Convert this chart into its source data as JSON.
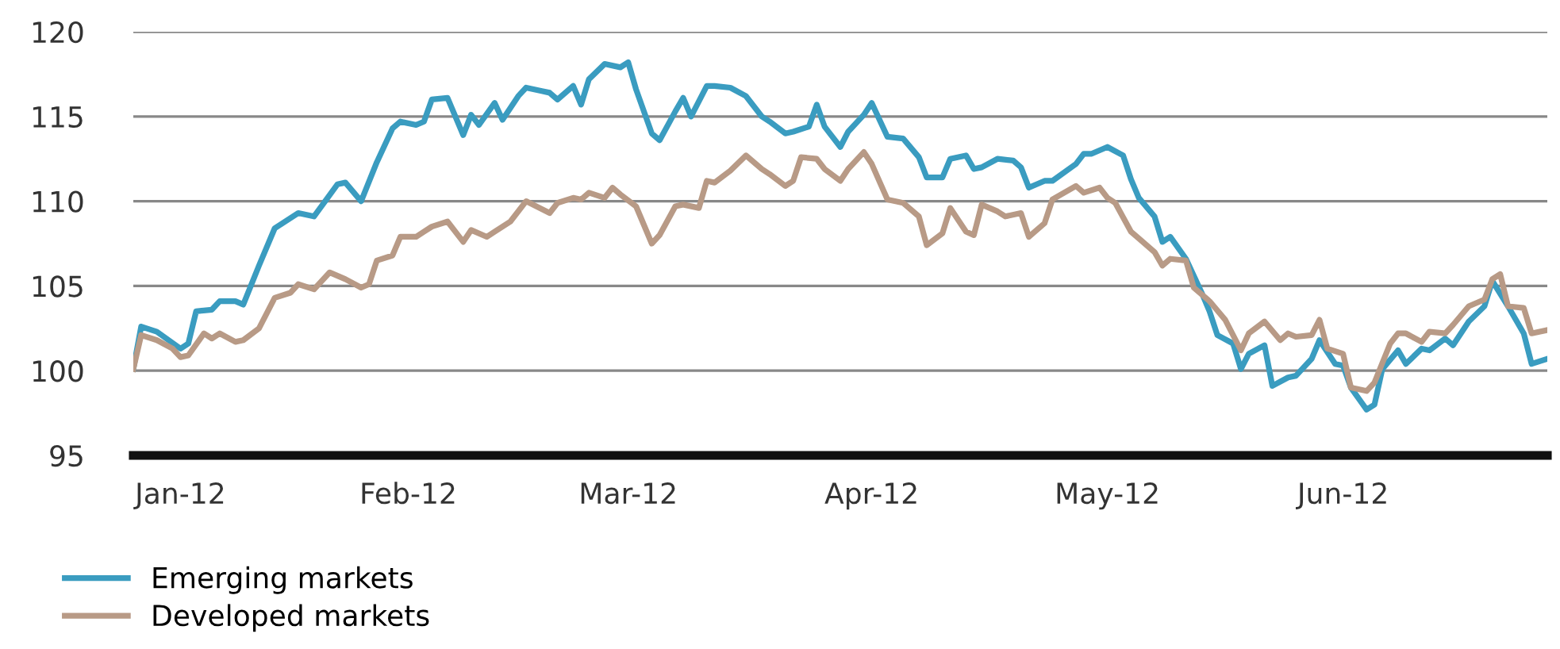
{
  "chart_data": {
    "type": "line",
    "xlim": [
      "2012-01-02",
      "2012-06-30"
    ],
    "xticks": [
      {
        "value": "2012-01-08",
        "label": "Jan-12"
      },
      {
        "value": "2012-02-06",
        "label": "Feb-12"
      },
      {
        "value": "2012-03-05",
        "label": "Mar-12"
      },
      {
        "value": "2012-04-05",
        "label": "Apr-12"
      },
      {
        "value": "2012-05-05",
        "label": "May-12"
      },
      {
        "value": "2012-06-04",
        "label": "Jun-12"
      }
    ],
    "ylim": [
      95,
      120
    ],
    "yticks": [
      95,
      100,
      105,
      110,
      115,
      120
    ],
    "grid": "y",
    "legend": "bottom left",
    "line_style": "solid",
    "marker": "none",
    "series": [
      {
        "name": "Emerging markets",
        "color": "#3a9cc0",
        "x": [
          "2012-01-02",
          "2012-01-03",
          "2012-01-05",
          "2012-01-08",
          "2012-01-09",
          "2012-01-10",
          "2012-01-12",
          "2012-01-13",
          "2012-01-15",
          "2012-01-16",
          "2012-01-18",
          "2012-01-20",
          "2012-01-23",
          "2012-01-25",
          "2012-01-28",
          "2012-01-29",
          "2012-01-31",
          "2012-02-02",
          "2012-02-04",
          "2012-02-05",
          "2012-02-07",
          "2012-02-08",
          "2012-02-09",
          "2012-02-11",
          "2012-02-13",
          "2012-02-14",
          "2012-02-15",
          "2012-02-17",
          "2012-02-18",
          "2012-02-20",
          "2012-02-21",
          "2012-02-23",
          "2012-02-24",
          "2012-02-25",
          "2012-02-27",
          "2012-02-28",
          "2012-02-29",
          "2012-03-02",
          "2012-03-04",
          "2012-03-05",
          "2012-03-06",
          "2012-03-08",
          "2012-03-09",
          "2012-03-11",
          "2012-03-12",
          "2012-03-13",
          "2012-03-15",
          "2012-03-16",
          "2012-03-18",
          "2012-03-20",
          "2012-03-22",
          "2012-03-23",
          "2012-03-25",
          "2012-03-26",
          "2012-03-28",
          "2012-03-29",
          "2012-03-30",
          "2012-04-01",
          "2012-04-02",
          "2012-04-04",
          "2012-04-05",
          "2012-04-07",
          "2012-04-09",
          "2012-04-11",
          "2012-04-12",
          "2012-04-14",
          "2012-04-15",
          "2012-04-17",
          "2012-04-18",
          "2012-04-19",
          "2012-04-21",
          "2012-04-23",
          "2012-04-24",
          "2012-04-25",
          "2012-04-27",
          "2012-04-28",
          "2012-05-01",
          "2012-05-02",
          "2012-05-03",
          "2012-05-05",
          "2012-05-07",
          "2012-05-08",
          "2012-05-09",
          "2012-05-11",
          "2012-05-12",
          "2012-05-13",
          "2012-05-15",
          "2012-05-17",
          "2012-05-18",
          "2012-05-19",
          "2012-05-21",
          "2012-05-22",
          "2012-05-23",
          "2012-05-25",
          "2012-05-26",
          "2012-05-28",
          "2012-05-29",
          "2012-05-31",
          "2012-06-01",
          "2012-06-03",
          "2012-06-04",
          "2012-06-05",
          "2012-06-07",
          "2012-06-08",
          "2012-06-09",
          "2012-06-11",
          "2012-06-12",
          "2012-06-14",
          "2012-06-15",
          "2012-06-17",
          "2012-06-18",
          "2012-06-20",
          "2012-06-22",
          "2012-06-23",
          "2012-06-25",
          "2012-06-27",
          "2012-06-28",
          "2012-06-30"
        ],
        "values": [
          100.1,
          102.6,
          102.3,
          101.3,
          101.6,
          103.5,
          103.6,
          104.1,
          104.1,
          103.9,
          106.2,
          108.4,
          109.3,
          109.1,
          111.0,
          111.1,
          110.0,
          112.3,
          114.3,
          114.7,
          114.5,
          114.7,
          116.0,
          116.1,
          113.9,
          115.1,
          114.5,
          115.8,
          114.8,
          116.2,
          116.7,
          116.5,
          116.4,
          116.0,
          116.8,
          115.7,
          117.2,
          118.1,
          117.9,
          118.2,
          116.6,
          114.0,
          113.6,
          115.3,
          116.1,
          115.0,
          116.8,
          116.8,
          116.7,
          116.2,
          115.0,
          114.7,
          114.0,
          114.1,
          114.4,
          115.7,
          114.4,
          113.2,
          114.1,
          115.1,
          115.8,
          113.8,
          113.7,
          112.6,
          111.4,
          111.4,
          112.5,
          112.7,
          111.9,
          112.0,
          112.5,
          112.4,
          112.0,
          110.8,
          111.2,
          111.2,
          112.2,
          112.8,
          112.8,
          113.2,
          112.7,
          111.3,
          110.2,
          109.1,
          107.6,
          107.9,
          106.6,
          104.6,
          103.5,
          102.1,
          101.6,
          100.1,
          101.0,
          101.5,
          99.1,
          99.6,
          99.7,
          100.7,
          101.8,
          100.4,
          100.3,
          99.0,
          97.7,
          98.0,
          100.1,
          101.2,
          100.4,
          101.3,
          101.2,
          101.9,
          101.5,
          102.9,
          103.8,
          105.3,
          103.8,
          102.2,
          100.4,
          100.7
        ]
      },
      {
        "name": "Developed markets",
        "color": "#b89a86",
        "x": [
          "2012-01-02",
          "2012-01-03",
          "2012-01-05",
          "2012-01-07",
          "2012-01-08",
          "2012-01-09",
          "2012-01-11",
          "2012-01-12",
          "2012-01-13",
          "2012-01-15",
          "2012-01-16",
          "2012-01-18",
          "2012-01-20",
          "2012-01-22",
          "2012-01-23",
          "2012-01-25",
          "2012-01-27",
          "2012-01-29",
          "2012-01-31",
          "2012-02-01",
          "2012-02-02",
          "2012-02-04",
          "2012-02-05",
          "2012-02-07",
          "2012-02-08",
          "2012-02-09",
          "2012-02-11",
          "2012-02-13",
          "2012-02-14",
          "2012-02-16",
          "2012-02-17",
          "2012-02-19",
          "2012-02-21",
          "2012-02-24",
          "2012-02-25",
          "2012-02-27",
          "2012-02-28",
          "2012-02-29",
          "2012-03-02",
          "2012-03-03",
          "2012-03-04",
          "2012-03-06",
          "2012-03-08",
          "2012-03-09",
          "2012-03-11",
          "2012-03-12",
          "2012-03-14",
          "2012-03-15",
          "2012-03-16",
          "2012-03-18",
          "2012-03-20",
          "2012-03-22",
          "2012-03-23",
          "2012-03-25",
          "2012-03-26",
          "2012-03-27",
          "2012-03-29",
          "2012-03-30",
          "2012-04-01",
          "2012-04-02",
          "2012-04-04",
          "2012-04-05",
          "2012-04-07",
          "2012-04-09",
          "2012-04-11",
          "2012-04-12",
          "2012-04-14",
          "2012-04-15",
          "2012-04-17",
          "2012-04-18",
          "2012-04-19",
          "2012-04-21",
          "2012-04-22",
          "2012-04-24",
          "2012-04-25",
          "2012-04-27",
          "2012-04-28",
          "2012-05-01",
          "2012-05-02",
          "2012-05-04",
          "2012-05-05",
          "2012-05-06",
          "2012-05-08",
          "2012-05-09",
          "2012-05-11",
          "2012-05-12",
          "2012-05-13",
          "2012-05-15",
          "2012-05-16",
          "2012-05-18",
          "2012-05-20",
          "2012-05-22",
          "2012-05-23",
          "2012-05-25",
          "2012-05-27",
          "2012-05-28",
          "2012-05-29",
          "2012-05-31",
          "2012-06-01",
          "2012-06-02",
          "2012-06-04",
          "2012-06-05",
          "2012-06-07",
          "2012-06-08",
          "2012-06-10",
          "2012-06-11",
          "2012-06-12",
          "2012-06-14",
          "2012-06-15",
          "2012-06-17",
          "2012-06-18",
          "2012-06-20",
          "2012-06-22",
          "2012-06-23",
          "2012-06-24",
          "2012-06-25",
          "2012-06-27",
          "2012-06-28",
          "2012-06-30"
        ],
        "values": [
          100.1,
          102.1,
          101.8,
          101.3,
          100.8,
          100.9,
          102.2,
          101.9,
          102.2,
          101.7,
          101.8,
          102.5,
          104.3,
          104.6,
          105.1,
          104.8,
          105.8,
          105.4,
          104.9,
          105.1,
          106.5,
          106.8,
          107.9,
          107.9,
          108.2,
          108.5,
          108.8,
          107.6,
          108.3,
          107.9,
          108.2,
          108.8,
          110.0,
          109.3,
          109.9,
          110.2,
          110.1,
          110.5,
          110.2,
          110.8,
          110.4,
          109.7,
          107.5,
          108.0,
          109.7,
          109.8,
          109.6,
          111.2,
          111.1,
          111.8,
          112.7,
          111.9,
          111.6,
          110.9,
          111.2,
          112.6,
          112.5,
          111.9,
          111.2,
          111.9,
          112.9,
          112.2,
          110.1,
          109.9,
          109.1,
          107.4,
          108.1,
          109.6,
          108.2,
          108.0,
          109.8,
          109.4,
          109.1,
          109.3,
          107.9,
          108.7,
          110.1,
          110.9,
          110.5,
          110.8,
          110.2,
          109.9,
          108.2,
          107.8,
          107.0,
          106.2,
          106.6,
          106.5,
          104.9,
          104.1,
          103.0,
          101.2,
          102.2,
          102.9,
          101.8,
          102.2,
          102.0,
          102.1,
          103.0,
          101.3,
          101.0,
          99.0,
          98.8,
          99.3,
          101.6,
          102.2,
          102.2,
          101.7,
          102.3,
          102.2,
          102.7,
          103.8,
          104.2,
          105.4,
          105.7,
          103.8,
          103.7,
          102.2,
          102.4
        ]
      }
    ]
  }
}
